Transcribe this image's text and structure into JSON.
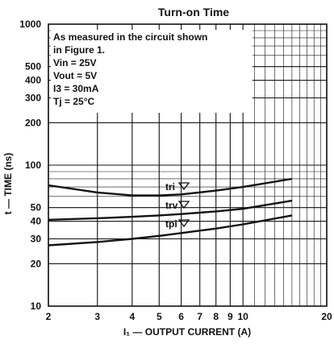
{
  "chart_data": {
    "type": "line",
    "title": "Turn-on Time",
    "xlabel": "I₁ — OUTPUT CURRENT (A)",
    "ylabel": "t — TIME (ns)",
    "x_scale": "log",
    "y_scale": "log",
    "xlim": [
      2,
      20
    ],
    "ylim": [
      10,
      1000
    ],
    "grid": true,
    "x_ticks": [
      2,
      3,
      4,
      5,
      6,
      7,
      8,
      9,
      10,
      20
    ],
    "y_ticks": [
      10,
      20,
      30,
      40,
      50,
      100,
      200,
      300,
      400,
      500,
      1000
    ],
    "annotation_lines": [
      "As measured in the circuit shown",
      "in Figure 1.",
      "Vin = 25V",
      "Vout = 5V",
      "I3 = 30mA",
      "Tj = 25°C"
    ],
    "series": [
      {
        "name": "tri",
        "x": [
          2,
          3,
          4,
          5,
          6,
          8,
          10,
          15
        ],
        "y": [
          72,
          64,
          61,
          61,
          62,
          66,
          70,
          80
        ]
      },
      {
        "name": "trv",
        "x": [
          2,
          3,
          4,
          5,
          6,
          8,
          10,
          15
        ],
        "y": [
          41,
          42,
          43,
          44,
          45,
          47,
          49,
          56
        ]
      },
      {
        "name": "tpi",
        "x": [
          2,
          3,
          4,
          5,
          6,
          8,
          10,
          15
        ],
        "y": [
          27,
          28.5,
          30,
          31.5,
          33,
          35.5,
          38,
          44
        ]
      }
    ]
  }
}
